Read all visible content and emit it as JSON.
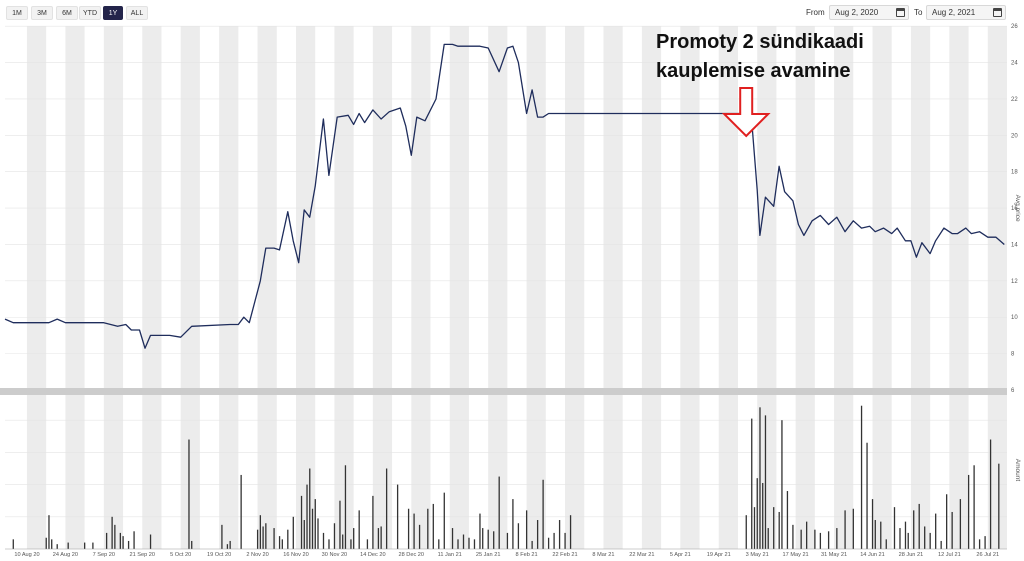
{
  "toolbar": {
    "range_buttons": [
      "1M",
      "3M",
      "6M",
      "YTD",
      "1Y",
      "ALL"
    ],
    "active_range": "1Y",
    "from_label": "From",
    "from_value": "Aug 2, 2020",
    "to_label": "To",
    "to_value": "Aug 2, 2021"
  },
  "annotation": {
    "line1": "Promoty 2 sündikaadi",
    "line2": "kauplemise avamine",
    "arrow_date": "2021-04-29",
    "arrow_color": "#e02020"
  },
  "colors": {
    "price_line": "#1f2d5c",
    "volume_bars": "#333333",
    "band": "#ececec",
    "separator": "#cccccc"
  },
  "chart_data": [
    {
      "type": "line",
      "ylabel": "Avg price",
      "ylim": [
        6,
        27
      ],
      "yticks": [
        6,
        8,
        10,
        12,
        14,
        16,
        18,
        20,
        22,
        24,
        26
      ],
      "x_range": [
        "2020-08-02",
        "2021-08-02"
      ],
      "x_ticks": [
        {
          "date": "2020-08-10",
          "label": "10 Aug 20"
        },
        {
          "date": "2020-08-24",
          "label": "24 Aug 20"
        },
        {
          "date": "2020-09-07",
          "label": "7 Sep 20"
        },
        {
          "date": "2020-09-21",
          "label": "21 Sep 20"
        },
        {
          "date": "2020-10-05",
          "label": "5 Oct 20"
        },
        {
          "date": "2020-10-19",
          "label": "19 Oct 20"
        },
        {
          "date": "2020-11-02",
          "label": "2 Nov 20"
        },
        {
          "date": "2020-11-16",
          "label": "16 Nov 20"
        },
        {
          "date": "2020-11-30",
          "label": "30 Nov 20"
        },
        {
          "date": "2020-12-14",
          "label": "14 Dec 20"
        },
        {
          "date": "2020-12-28",
          "label": "28 Dec 20"
        },
        {
          "date": "2021-01-11",
          "label": "11 Jan 21"
        },
        {
          "date": "2021-01-25",
          "label": "25 Jan 21"
        },
        {
          "date": "2021-02-08",
          "label": "8 Feb 21"
        },
        {
          "date": "2021-02-22",
          "label": "22 Feb 21"
        },
        {
          "date": "2021-03-08",
          "label": "8 Mar 21"
        },
        {
          "date": "2021-03-22",
          "label": "22 Mar 21"
        },
        {
          "date": "2021-04-05",
          "label": "5 Apr 21"
        },
        {
          "date": "2021-04-19",
          "label": "19 Apr 21"
        },
        {
          "date": "2021-05-03",
          "label": "3 May 21"
        },
        {
          "date": "2021-05-17",
          "label": "17 May 21"
        },
        {
          "date": "2021-05-31",
          "label": "31 May 21"
        },
        {
          "date": "2021-06-14",
          "label": "14 Jun 21"
        },
        {
          "date": "2021-06-28",
          "label": "28 Jun 21"
        },
        {
          "date": "2021-07-12",
          "label": "12 Jul 21"
        },
        {
          "date": "2021-07-26",
          "label": "26 Jul 21"
        }
      ],
      "grid": false,
      "series": [
        {
          "x": [
            "2020-08-02",
            "2020-08-05",
            "2020-08-18",
            "2020-08-21",
            "2020-08-24",
            "2020-09-07",
            "2020-09-12",
            "2020-09-15",
            "2020-09-17",
            "2020-09-20",
            "2020-09-22",
            "2020-09-24",
            "2020-10-01",
            "2020-10-05",
            "2020-10-09",
            "2020-10-23",
            "2020-10-26",
            "2020-10-28",
            "2020-10-30",
            "2020-11-03",
            "2020-11-05",
            "2020-11-08",
            "2020-11-10",
            "2020-11-13",
            "2020-11-15",
            "2020-11-17",
            "2020-11-19",
            "2020-11-21",
            "2020-11-23",
            "2020-11-26",
            "2020-11-28",
            "2020-12-01",
            "2020-12-05",
            "2020-12-07",
            "2020-12-09",
            "2020-12-11",
            "2020-12-14",
            "2020-12-17",
            "2020-12-20",
            "2020-12-24",
            "2020-12-26",
            "2020-12-28",
            "2020-12-30",
            "2021-01-02",
            "2021-01-06",
            "2021-01-09",
            "2021-01-12",
            "2021-01-14",
            "2021-01-18",
            "2021-01-22",
            "2021-01-25",
            "2021-01-29",
            "2021-02-01",
            "2021-02-03",
            "2021-02-05",
            "2021-02-08",
            "2021-02-10",
            "2021-02-12",
            "2021-02-14",
            "2021-02-16",
            "2021-02-18",
            "2021-02-22",
            "2021-03-01",
            "2021-04-29",
            "2021-05-01",
            "2021-05-03",
            "2021-05-04",
            "2021-05-06",
            "2021-05-09",
            "2021-05-11",
            "2021-05-13",
            "2021-05-16",
            "2021-05-18",
            "2021-05-20",
            "2021-05-23",
            "2021-05-26",
            "2021-05-29",
            "2021-06-01",
            "2021-06-04",
            "2021-06-07",
            "2021-06-10",
            "2021-06-13",
            "2021-06-15",
            "2021-06-18",
            "2021-06-21",
            "2021-06-23",
            "2021-06-26",
            "2021-06-28",
            "2021-06-30",
            "2021-07-02",
            "2021-07-05",
            "2021-07-07",
            "2021-07-10",
            "2021-07-13",
            "2021-07-15",
            "2021-07-18",
            "2021-07-20",
            "2021-07-23",
            "2021-07-26",
            "2021-07-29",
            "2021-08-01"
          ],
          "y": [
            9.9,
            9.7,
            9.7,
            9.9,
            9.7,
            9.7,
            9.5,
            9.6,
            9.3,
            9.3,
            8.3,
            9.0,
            9.0,
            8.9,
            9.5,
            9.6,
            9.6,
            10.0,
            9.7,
            12.0,
            13.8,
            13.8,
            13.7,
            15.8,
            14.2,
            13.0,
            15.9,
            15.5,
            17.2,
            20.9,
            17.8,
            21.0,
            21.1,
            20.6,
            21.2,
            20.7,
            21.4,
            20.9,
            21.3,
            21.5,
            20.5,
            18.9,
            21.0,
            20.8,
            22.0,
            25.0,
            25.0,
            24.9,
            24.9,
            24.9,
            24.8,
            23.5,
            24.8,
            24.9,
            24.0,
            21.2,
            22.5,
            21.0,
            21.0,
            21.2,
            21.2,
            21.2,
            21.2,
            21.2,
            20.8,
            17.0,
            14.5,
            16.6,
            16.1,
            18.3,
            16.9,
            16.4,
            15.1,
            14.5,
            15.3,
            15.6,
            15.1,
            15.5,
            14.7,
            15.3,
            14.9,
            15.0,
            14.7,
            14.9,
            14.6,
            14.9,
            14.2,
            14.2,
            13.3,
            14.1,
            13.5,
            14.2,
            14.9,
            14.6,
            14.6,
            14.9,
            14.6,
            14.7,
            14.4,
            14.4,
            14.0
          ]
        }
      ]
    },
    {
      "type": "bar",
      "ylabel": "Amount",
      "ylim": [
        0,
        1
      ],
      "dates": [
        "2020-08-05",
        "2020-08-17",
        "2020-08-18",
        "2020-08-19",
        "2020-08-21",
        "2020-08-25",
        "2020-08-31",
        "2020-09-03",
        "2020-09-08",
        "2020-09-10",
        "2020-09-11",
        "2020-09-13",
        "2020-09-14",
        "2020-09-16",
        "2020-09-18",
        "2020-09-24",
        "2020-10-08",
        "2020-10-09",
        "2020-10-20",
        "2020-10-22",
        "2020-10-23",
        "2020-10-27",
        "2020-11-02",
        "2020-11-03",
        "2020-11-04",
        "2020-11-05",
        "2020-11-08",
        "2020-11-10",
        "2020-11-11",
        "2020-11-13",
        "2020-11-15",
        "2020-11-18",
        "2020-11-19",
        "2020-11-20",
        "2020-11-21",
        "2020-11-22",
        "2020-11-23",
        "2020-11-24",
        "2020-11-26",
        "2020-11-28",
        "2020-11-30",
        "2020-12-02",
        "2020-12-03",
        "2020-12-04",
        "2020-12-06",
        "2020-12-07",
        "2020-12-09",
        "2020-12-12",
        "2020-12-14",
        "2020-12-16",
        "2020-12-17",
        "2020-12-19",
        "2020-12-23",
        "2020-12-27",
        "2020-12-29",
        "2020-12-31",
        "2021-01-03",
        "2021-01-05",
        "2021-01-07",
        "2021-01-09",
        "2021-01-12",
        "2021-01-14",
        "2021-01-16",
        "2021-01-18",
        "2021-01-20",
        "2021-01-22",
        "2021-01-23",
        "2021-01-25",
        "2021-01-27",
        "2021-01-29",
        "2021-02-01",
        "2021-02-03",
        "2021-02-05",
        "2021-02-08",
        "2021-02-10",
        "2021-02-12",
        "2021-02-14",
        "2021-02-16",
        "2021-02-18",
        "2021-02-20",
        "2021-02-22",
        "2021-02-24",
        "2021-04-29",
        "2021-05-01",
        "2021-05-02",
        "2021-05-03",
        "2021-05-04",
        "2021-05-05",
        "2021-05-06",
        "2021-05-07",
        "2021-05-09",
        "2021-05-11",
        "2021-05-12",
        "2021-05-14",
        "2021-05-16",
        "2021-05-19",
        "2021-05-21",
        "2021-05-24",
        "2021-05-26",
        "2021-05-29",
        "2021-06-01",
        "2021-06-04",
        "2021-06-07",
        "2021-06-10",
        "2021-06-12",
        "2021-06-14",
        "2021-06-15",
        "2021-06-17",
        "2021-06-19",
        "2021-06-22",
        "2021-06-24",
        "2021-06-26",
        "2021-06-27",
        "2021-06-29",
        "2021-07-01",
        "2021-07-03",
        "2021-07-05",
        "2021-07-07",
        "2021-07-09",
        "2021-07-11",
        "2021-07-13",
        "2021-07-16",
        "2021-07-19",
        "2021-07-21",
        "2021-07-23",
        "2021-07-25",
        "2021-07-27",
        "2021-07-30"
      ],
      "values": [
        0.06,
        0.07,
        0.21,
        0.06,
        0.03,
        0.04,
        0.04,
        0.04,
        0.1,
        0.2,
        0.15,
        0.1,
        0.08,
        0.05,
        0.11,
        0.09,
        0.68,
        0.05,
        0.15,
        0.03,
        0.05,
        0.46,
        0.12,
        0.21,
        0.14,
        0.16,
        0.13,
        0.08,
        0.06,
        0.12,
        0.2,
        0.33,
        0.18,
        0.4,
        0.5,
        0.25,
        0.31,
        0.19,
        0.1,
        0.06,
        0.16,
        0.3,
        0.09,
        0.52,
        0.06,
        0.13,
        0.24,
        0.06,
        0.33,
        0.13,
        0.14,
        0.5,
        0.4,
        0.25,
        0.22,
        0.15,
        0.25,
        0.28,
        0.06,
        0.35,
        0.13,
        0.06,
        0.09,
        0.07,
        0.06,
        0.22,
        0.13,
        0.12,
        0.11,
        0.45,
        0.1,
        0.31,
        0.16,
        0.24,
        0.05,
        0.18,
        0.43,
        0.07,
        0.1,
        0.18,
        0.1,
        0.21,
        0.21,
        0.81,
        0.26,
        0.44,
        0.88,
        0.41,
        0.83,
        0.13,
        0.26,
        0.23,
        0.8,
        0.36,
        0.15,
        0.12,
        0.17,
        0.12,
        0.1,
        0.11,
        0.13,
        0.24,
        0.25,
        0.89,
        0.66,
        0.31,
        0.18,
        0.17,
        0.06,
        0.26,
        0.13,
        0.17,
        0.1,
        0.24,
        0.28,
        0.14,
        0.1,
        0.22,
        0.05,
        0.34,
        0.23,
        0.31,
        0.46,
        0.52,
        0.06,
        0.08,
        0.68,
        0.53
      ]
    }
  ]
}
